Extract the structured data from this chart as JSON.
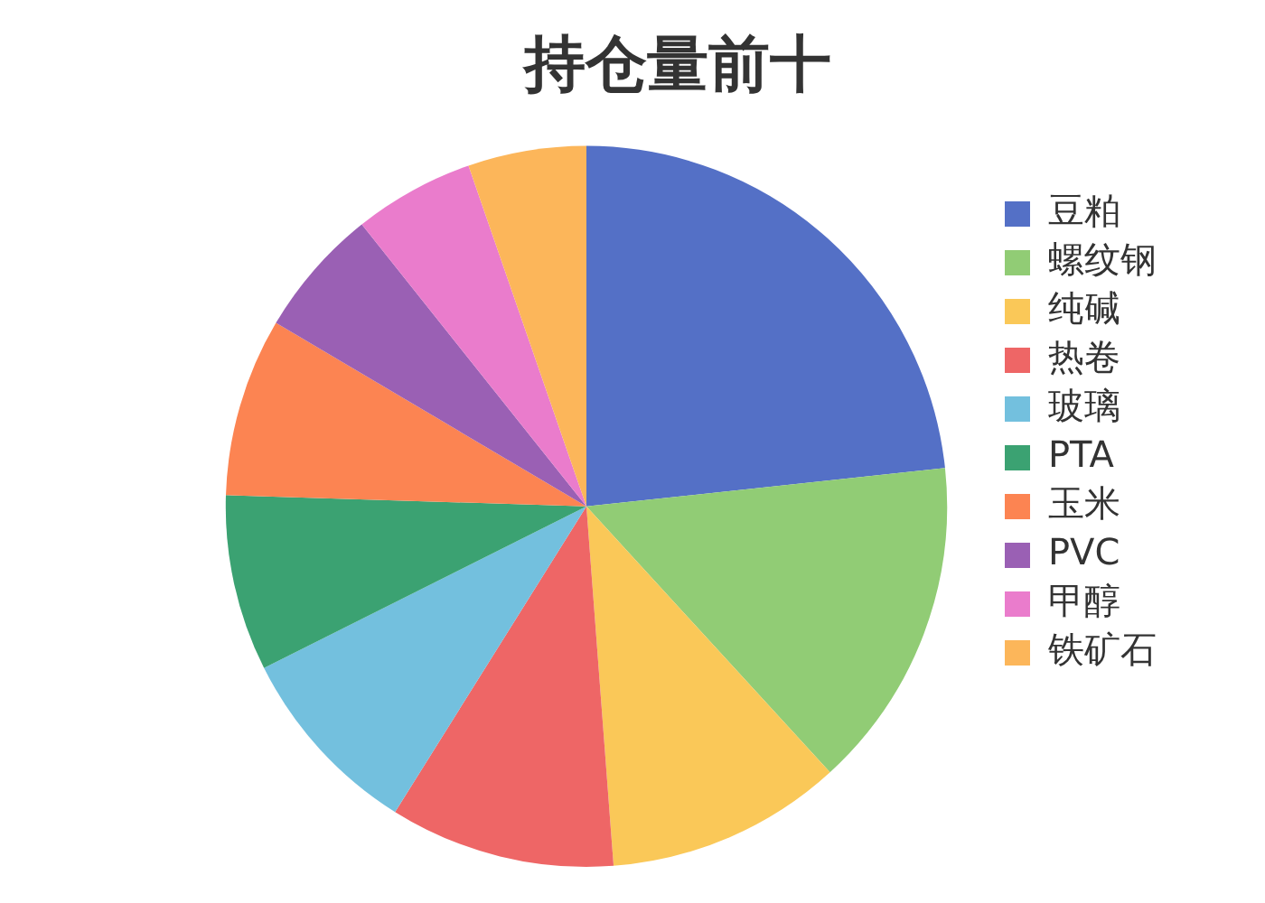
{
  "chart_data": {
    "type": "pie",
    "title": "持仓量前十",
    "categories": [
      "豆粕",
      "螺纹钢",
      "纯碱",
      "热卷",
      "玻璃",
      "PTA",
      "玉米",
      "PVC",
      "甲醇",
      "铁矿石"
    ],
    "values": [
      23.3,
      14.9,
      10.6,
      10.1,
      8.7,
      7.9,
      8.0,
      5.8,
      5.4,
      5.3
    ],
    "colors": [
      "#5470c6",
      "#91cc75",
      "#fac858",
      "#ee6666",
      "#73c0de",
      "#3ba272",
      "#fc8452",
      "#9a60b4",
      "#ea7ccc",
      "#fcb65a"
    ],
    "legend": "right"
  }
}
